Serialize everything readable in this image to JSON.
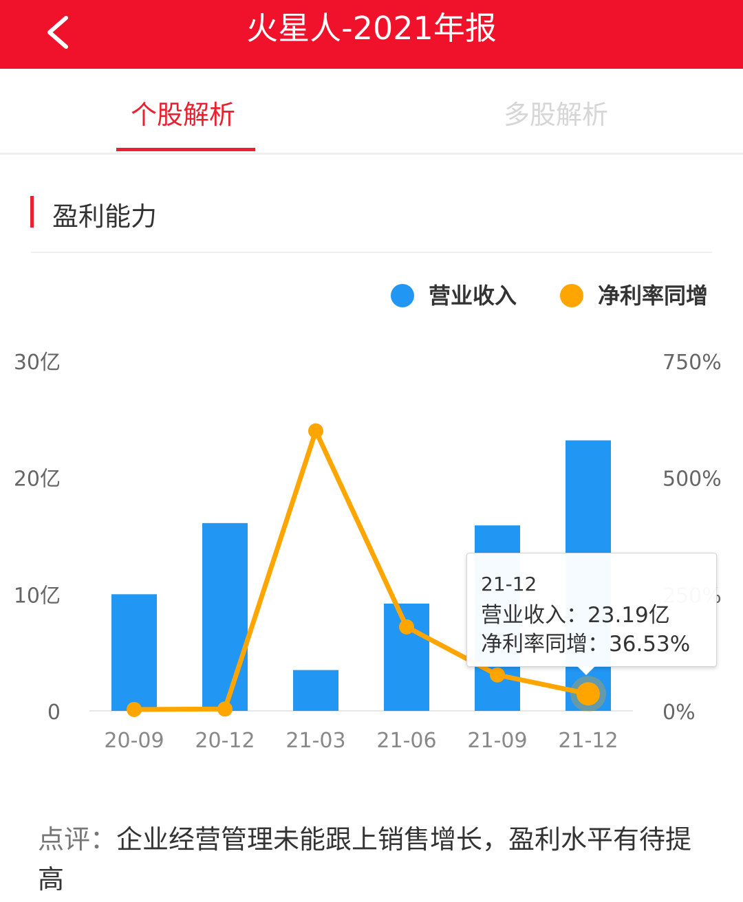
{
  "header": {
    "title": "火星人-2021年报",
    "back_icon": "chevron-left-icon"
  },
  "tabs": [
    {
      "label": "个股解析",
      "active": true
    },
    {
      "label": "多股解析",
      "active": false
    }
  ],
  "section": {
    "title": "盈利能力"
  },
  "legend": [
    {
      "label": "营业收入",
      "color": "#2196f3"
    },
    {
      "label": "净利率同增",
      "color": "#ffa500"
    }
  ],
  "chart_data": {
    "type": "bar",
    "categories": [
      "20-09",
      "20-12",
      "21-03",
      "21-06",
      "21-09",
      "21-12"
    ],
    "series": [
      {
        "name": "营业收入",
        "type": "bar",
        "axis": "left",
        "color": "#2196f3",
        "values": [
          10.0,
          16.1,
          3.5,
          9.2,
          15.9,
          23.19
        ]
      },
      {
        "name": "净利率同增",
        "type": "line",
        "axis": "right",
        "color": "#ffa500",
        "values": [
          3,
          4,
          600,
          180,
          77,
          36.53
        ]
      }
    ],
    "y_left": {
      "ticks": [
        "0",
        "10亿",
        "20亿",
        "30亿"
      ],
      "lim": [
        0,
        30
      ]
    },
    "y_right": {
      "ticks": [
        "0%",
        "250%",
        "500%",
        "750%"
      ],
      "lim": [
        0,
        750
      ]
    },
    "grid": false,
    "legend_position": "top-right",
    "highlighted_category": "21-12"
  },
  "tooltip": {
    "period": "21-12",
    "line1": "营业收入：23.19亿",
    "line2": "净利率同增：36.53%"
  },
  "comment": {
    "prefix": "点评：",
    "text": "企业经营管理未能跟上销售增长，盈利水平有待提高"
  }
}
